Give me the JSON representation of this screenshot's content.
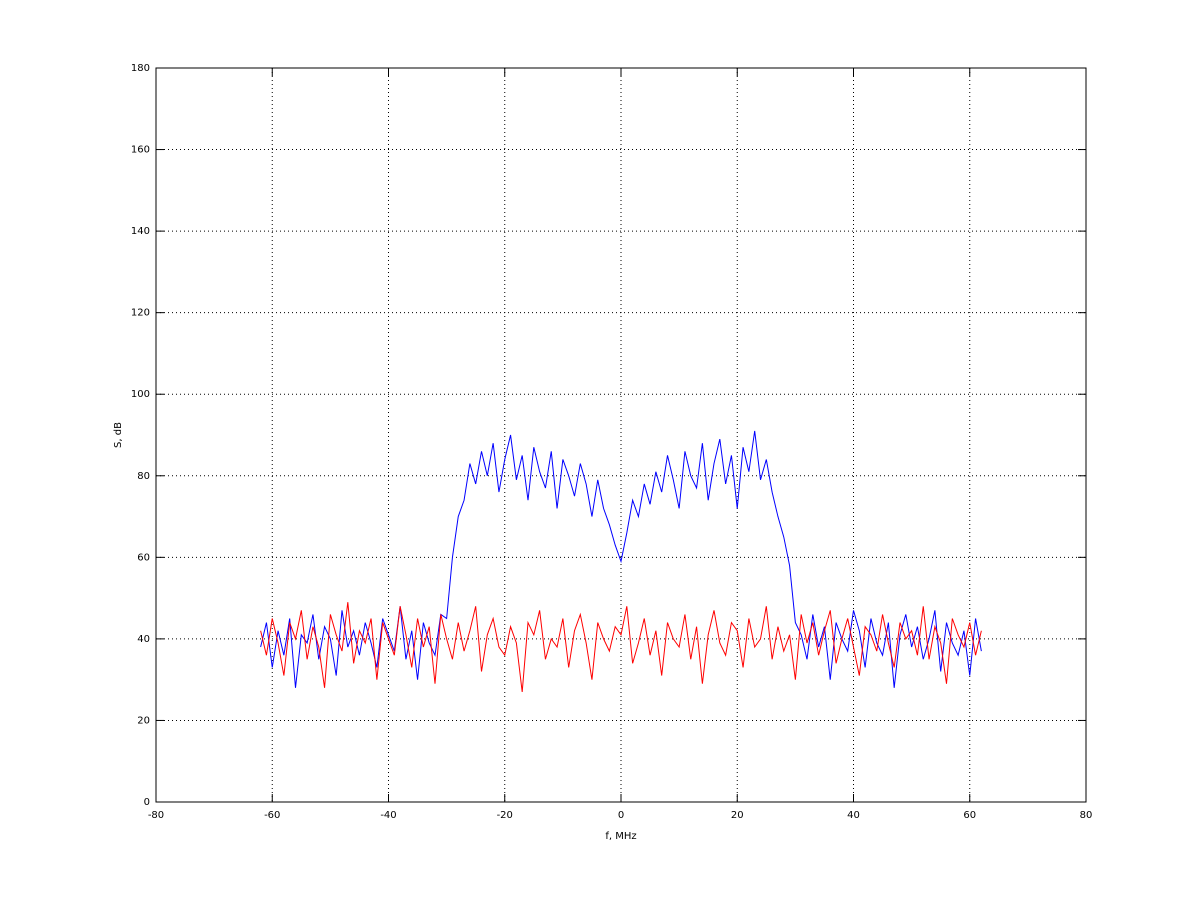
{
  "chart_data": {
    "type": "line",
    "xlabel": "f, MHz",
    "ylabel": "S, dB",
    "x": [
      -62,
      -61,
      -60,
      -59,
      -58,
      -57,
      -56,
      -55,
      -54,
      -53,
      -52,
      -51,
      -50,
      -49,
      -48,
      -47,
      -46,
      -45,
      -44,
      -43,
      -42,
      -41,
      -40,
      -39,
      -38,
      -37,
      -36,
      -35,
      -34,
      -33,
      -32,
      -31,
      -30,
      -29,
      -28,
      -27,
      -26,
      -25,
      -24,
      -23,
      -22,
      -21,
      -20,
      -19,
      -18,
      -17,
      -16,
      -15,
      -14,
      -13,
      -12,
      -11,
      -10,
      -9,
      -8,
      -7,
      -6,
      -5,
      -4,
      -3,
      -2,
      -1,
      0,
      1,
      2,
      3,
      4,
      5,
      6,
      7,
      8,
      9,
      10,
      11,
      12,
      13,
      14,
      15,
      16,
      17,
      18,
      19,
      20,
      21,
      22,
      23,
      24,
      25,
      26,
      27,
      28,
      29,
      30,
      31,
      32,
      33,
      34,
      35,
      36,
      37,
      38,
      39,
      40,
      41,
      42,
      43,
      44,
      45,
      46,
      47,
      48,
      49,
      50,
      51,
      52,
      53,
      54,
      55,
      56,
      57,
      58,
      59,
      60,
      61,
      62
    ],
    "series": [
      {
        "color": "#0000ff",
        "values": [
          38,
          44,
          33,
          42,
          36,
          45,
          28,
          41,
          39,
          46,
          35,
          43,
          40,
          31,
          47,
          38,
          42,
          36,
          44,
          39,
          33,
          45,
          41,
          37,
          48,
          35,
          42,
          30,
          44,
          39,
          36,
          46,
          45,
          60,
          70,
          74,
          83,
          78,
          86,
          80,
          88,
          76,
          84,
          90,
          79,
          85,
          74,
          87,
          81,
          77,
          86,
          72,
          84,
          80,
          75,
          83,
          78,
          70,
          79,
          72,
          68,
          63,
          59,
          66,
          74,
          70,
          78,
          73,
          81,
          76,
          85,
          79,
          72,
          86,
          80,
          77,
          88,
          74,
          83,
          89,
          78,
          85,
          72,
          87,
          81,
          91,
          79,
          84,
          76,
          70,
          65,
          58,
          44,
          41,
          35,
          46,
          38,
          43,
          30,
          44,
          40,
          37,
          47,
          42,
          33,
          45,
          39,
          36,
          44,
          28,
          41,
          46,
          38,
          43,
          35,
          40,
          47,
          32,
          44,
          39,
          36,
          42,
          31,
          45,
          37
        ]
      },
      {
        "color": "#ff0000",
        "values": [
          42,
          36,
          45,
          39,
          31,
          44,
          40,
          47,
          35,
          43,
          38,
          28,
          46,
          41,
          37,
          49,
          34,
          42,
          39,
          45,
          30,
          44,
          40,
          36,
          48,
          41,
          33,
          45,
          38,
          43,
          29,
          46,
          40,
          35,
          44,
          37,
          42,
          48,
          32,
          41,
          45,
          38,
          36,
          43,
          39,
          27,
          44,
          41,
          47,
          35,
          40,
          38,
          45,
          33,
          42,
          46,
          39,
          30,
          44,
          40,
          37,
          43,
          41,
          48,
          34,
          39,
          45,
          36,
          42,
          31,
          44,
          40,
          38,
          46,
          35,
          43,
          29,
          41,
          47,
          39,
          36,
          44,
          42,
          33,
          45,
          38,
          40,
          48,
          35,
          43,
          37,
          41,
          30,
          46,
          39,
          44,
          36,
          42,
          47,
          34,
          40,
          45,
          38,
          31,
          43,
          41,
          37,
          46,
          39,
          33,
          44,
          40,
          42,
          36,
          48,
          35,
          43,
          39,
          29,
          45,
          41,
          38,
          44,
          36,
          42
        ]
      }
    ],
    "xlim": [
      -80,
      80
    ],
    "xticks": [
      -80,
      -60,
      -40,
      -20,
      0,
      20,
      40,
      60,
      80
    ],
    "ylim": [
      0,
      180
    ],
    "yticks": [
      0,
      20,
      40,
      60,
      80,
      100,
      120,
      140,
      160,
      180
    ],
    "grid": true
  }
}
